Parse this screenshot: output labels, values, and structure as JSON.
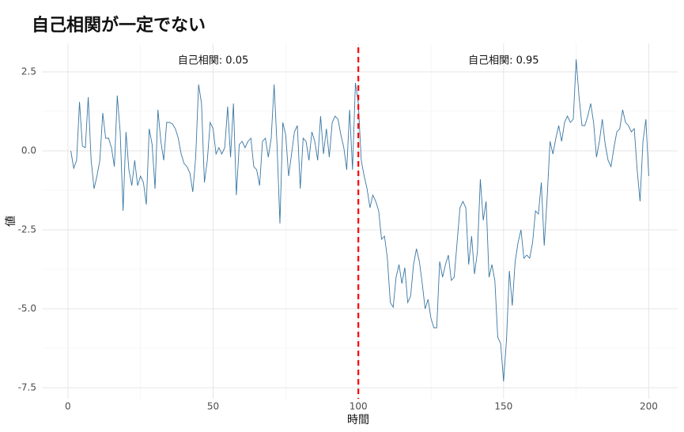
{
  "chart_data": {
    "type": "line",
    "title": "自己相関が一定でない",
    "x_label": "時間",
    "y_label": "値",
    "x": [
      1,
      2,
      3,
      4,
      5,
      6,
      7,
      8,
      9,
      10,
      11,
      12,
      13,
      14,
      15,
      16,
      17,
      18,
      19,
      20,
      21,
      22,
      23,
      24,
      25,
      26,
      27,
      28,
      29,
      30,
      31,
      32,
      33,
      34,
      35,
      36,
      37,
      38,
      39,
      40,
      41,
      42,
      43,
      44,
      45,
      46,
      47,
      48,
      49,
      50,
      51,
      52,
      53,
      54,
      55,
      56,
      57,
      58,
      59,
      60,
      61,
      62,
      63,
      64,
      65,
      66,
      67,
      68,
      69,
      70,
      71,
      72,
      73,
      74,
      75,
      76,
      77,
      78,
      79,
      80,
      81,
      82,
      83,
      84,
      85,
      86,
      87,
      88,
      89,
      90,
      91,
      92,
      93,
      94,
      95,
      96,
      97,
      98,
      99,
      100,
      101,
      102,
      103,
      104,
      105,
      106,
      107,
      108,
      109,
      110,
      111,
      112,
      113,
      114,
      115,
      116,
      117,
      118,
      119,
      120,
      121,
      122,
      123,
      124,
      125,
      126,
      127,
      128,
      129,
      130,
      131,
      132,
      133,
      134,
      135,
      136,
      137,
      138,
      139,
      140,
      141,
      142,
      143,
      144,
      145,
      146,
      147,
      148,
      149,
      150,
      151,
      152,
      153,
      154,
      155,
      156,
      157,
      158,
      159,
      160,
      161,
      162,
      163,
      164,
      165,
      166,
      167,
      168,
      169,
      170,
      171,
      172,
      173,
      174,
      175,
      176,
      177,
      178,
      179,
      180,
      181,
      182,
      183,
      184,
      185,
      186,
      187,
      188,
      189,
      190,
      191,
      192,
      193,
      194,
      195,
      196,
      197,
      198,
      199,
      200
    ],
    "values": [
      0.0,
      -0.55,
      -0.3,
      1.55,
      0.15,
      0.1,
      1.7,
      -0.3,
      -1.2,
      -0.8,
      -0.3,
      1.2,
      0.4,
      0.4,
      0.1,
      -0.5,
      1.75,
      0.6,
      -1.9,
      0.6,
      -0.6,
      -1.1,
      -0.3,
      -1.1,
      -0.8,
      -1.0,
      -1.7,
      0.7,
      0.2,
      -1.2,
      1.3,
      0.3,
      -0.3,
      0.9,
      0.9,
      0.85,
      0.7,
      0.4,
      -0.1,
      -0.4,
      -0.5,
      -0.7,
      -1.3,
      -0.2,
      2.1,
      1.5,
      -1.0,
      -0.3,
      0.9,
      0.7,
      -0.1,
      0.1,
      -0.1,
      0.1,
      1.4,
      -0.2,
      1.5,
      -1.4,
      0.2,
      0.3,
      0.1,
      0.3,
      0.4,
      -0.5,
      -0.6,
      -1.1,
      0.3,
      0.4,
      -0.2,
      0.4,
      2.1,
      0.2,
      -2.3,
      0.9,
      0.5,
      -0.8,
      -0.1,
      0.6,
      0.8,
      -1.2,
      0.4,
      0.3,
      -0.3,
      0.6,
      0.3,
      -0.3,
      1.1,
      -0.1,
      0.7,
      -0.2,
      0.9,
      1.1,
      1.0,
      0.5,
      0.1,
      -0.6,
      1.3,
      -0.6,
      2.15,
      1.5,
      -0.3,
      -0.8,
      -1.2,
      -1.8,
      -1.4,
      -1.6,
      -1.9,
      -2.8,
      -2.7,
      -3.4,
      -4.8,
      -4.95,
      -4.0,
      -3.6,
      -4.2,
      -3.7,
      -4.8,
      -4.6,
      -3.6,
      -3.1,
      -3.5,
      -4.2,
      -5.0,
      -4.7,
      -5.3,
      -5.6,
      -5.6,
      -3.5,
      -4.0,
      -3.6,
      -3.3,
      -4.1,
      -4.0,
      -2.9,
      -1.8,
      -1.6,
      -1.8,
      -3.6,
      -2.7,
      -3.9,
      -3.2,
      -0.9,
      -2.2,
      -1.6,
      -4.0,
      -3.6,
      -4.1,
      -5.9,
      -6.1,
      -7.3,
      -6.0,
      -3.8,
      -4.9,
      -3.5,
      -2.9,
      -2.5,
      -3.4,
      -3.3,
      -3.4,
      -2.9,
      -1.9,
      -2.0,
      -1.0,
      -3.0,
      -1.5,
      0.3,
      -0.1,
      0.4,
      0.8,
      0.3,
      0.9,
      1.1,
      0.9,
      1.0,
      2.9,
      1.7,
      0.8,
      0.8,
      1.1,
      1.5,
      0.9,
      -0.2,
      0.3,
      1.0,
      0.2,
      -0.3,
      -0.5,
      0.1,
      0.6,
      0.7,
      1.3,
      0.9,
      0.8,
      0.6,
      0.7,
      -0.6,
      -1.6,
      0.3,
      1.0,
      -0.8
    ],
    "color": "#3a77a3",
    "xlim": [
      -8.95,
      209.95
    ],
    "xticks": [
      0,
      50,
      100,
      150,
      200
    ],
    "xminor": [
      25,
      75,
      125,
      175
    ],
    "ylim": [
      -7.85,
      3.4
    ],
    "yticks": [
      -7.5,
      -5.0,
      -2.5,
      0.0,
      2.5
    ],
    "yminor": [
      -6.25,
      -3.75,
      -1.25,
      1.25
    ],
    "ytick_labels": [
      "-7.5",
      "-5.0",
      "-2.5",
      "0.0",
      "2.5"
    ],
    "grid": true,
    "vline": {
      "x": 100,
      "color": "#ff0000"
    },
    "annotations": [
      {
        "x": 50,
        "y": 2.85,
        "text": "自己相関: 0.05"
      },
      {
        "x": 150,
        "y": 2.85,
        "text": "自己相関: 0.95"
      }
    ]
  }
}
